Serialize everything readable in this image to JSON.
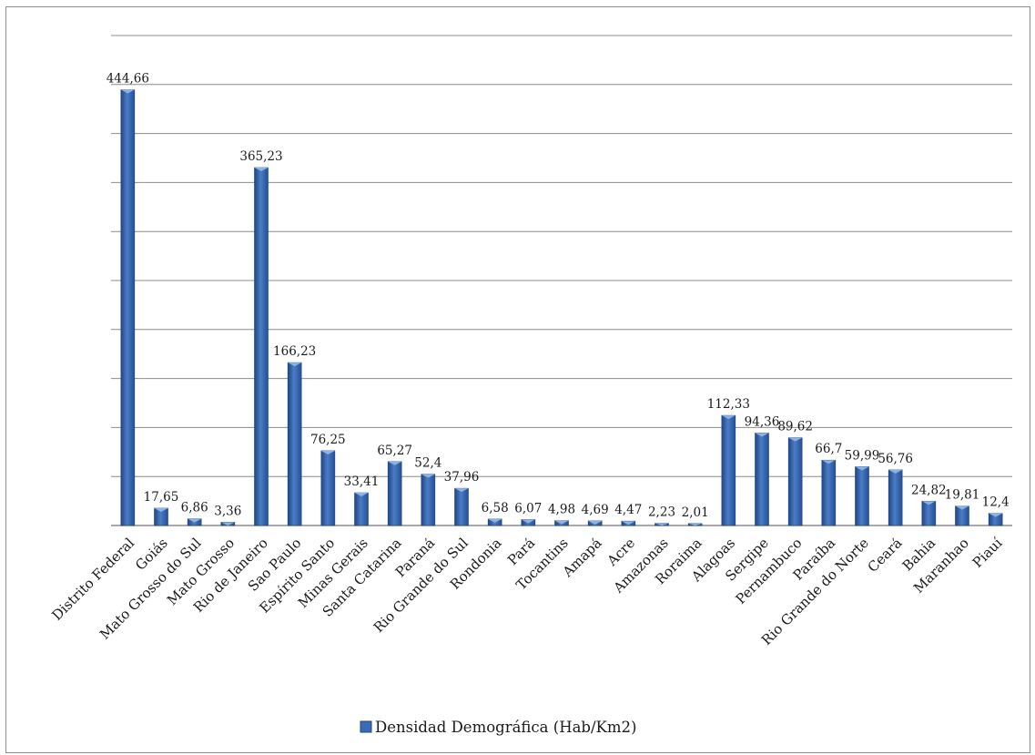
{
  "chart_data": {
    "type": "bar",
    "categories": [
      "Distrito Federal",
      "Goiás",
      "Mato Grosso do Sul",
      "Mato Grosso",
      "Rio de Janeiro",
      "Sao Paulo",
      "Espírito Santo",
      "Minas Gerais",
      "Santa Catarina",
      "Paraná",
      "Rio Grande do Sul",
      "Rondonia",
      "Pará",
      "Tocantins",
      "Amapá",
      "Acre",
      "Amazonas",
      "Roraima",
      "Alagoas",
      "Sergipe",
      "Pernambuco",
      "Paraíba",
      "Rio Grande do Norte",
      "Ceará",
      "Bahia",
      "Maranhao",
      "Piauí"
    ],
    "series": [
      {
        "name": "Densidad Demográfica (Hab/Km2)",
        "values": [
          444.66,
          17.65,
          6.86,
          3.36,
          365.23,
          166.23,
          76.25,
          33.41,
          65.27,
          52.4,
          37.96,
          6.58,
          6.07,
          4.98,
          4.69,
          4.47,
          2.23,
          2.01,
          112.33,
          94.36,
          89.62,
          66.7,
          59.99,
          56.76,
          24.82,
          19.81,
          12.4
        ]
      }
    ],
    "value_labels": [
      "444,66",
      "17,65",
      "6,86",
      "3,36",
      "365,23",
      "166,23",
      "76,25",
      "33,41",
      "65,27",
      "52,4",
      "37,96",
      "6,58",
      "6,07",
      "4,98",
      "4,69",
      "4,47",
      "2,23",
      "2,01",
      "112,33",
      "94,36",
      "89,62",
      "66,7",
      "59,99",
      "56,76",
      "24,82",
      "19,81",
      "12,4"
    ],
    "ylim": [
      0,
      500
    ],
    "ytick_step": 50,
    "grid": true,
    "legend": "bottom",
    "colors": {
      "bar": "#3a6bb5",
      "bar_dark": "#1f4684",
      "bar_light": "#8fb2e4",
      "grid": "#8c8c8c"
    }
  }
}
